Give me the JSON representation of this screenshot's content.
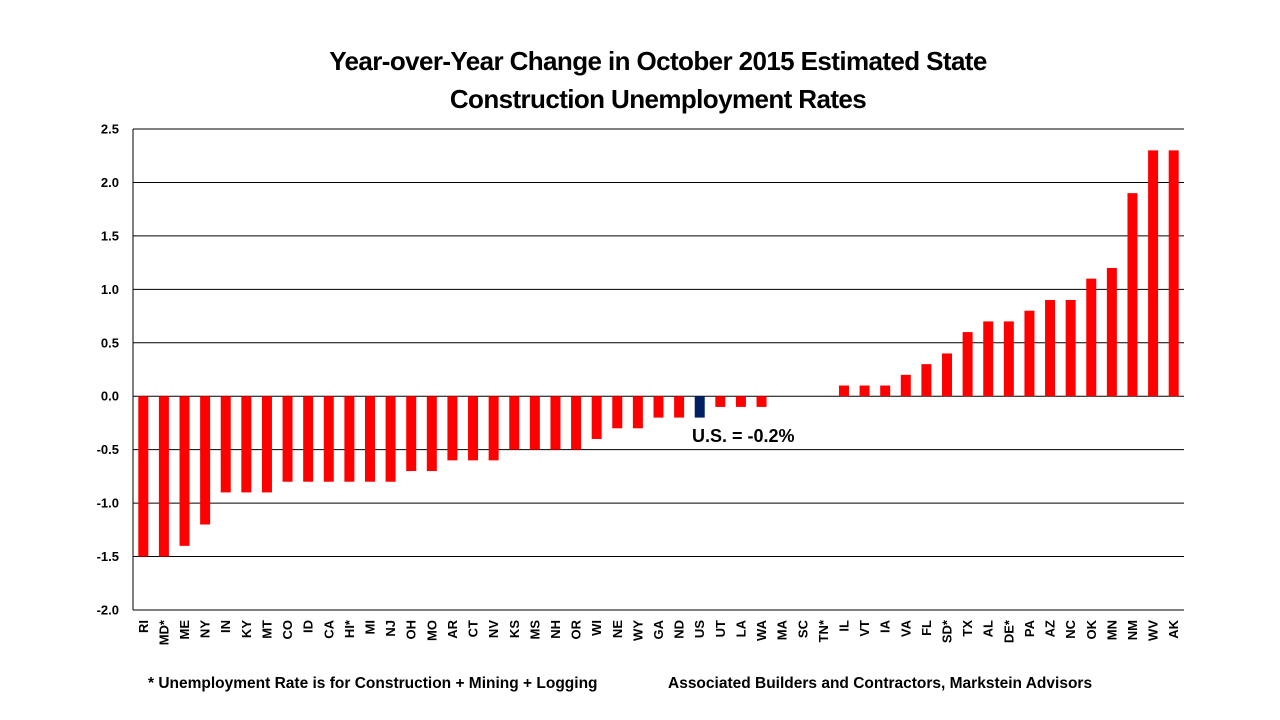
{
  "title_lines": [
    "Year-over-Year Change in October 2015 Estimated State",
    "Construction Unemployment Rates"
  ],
  "footnote": "* Unemployment Rate is for Construction + Mining + Logging",
  "source": "Associated Builders and Contractors, Markstein Advisors",
  "annotation": "U.S. = -0.2%",
  "colors": {
    "bar": "#ff0000",
    "highlight": "#002060",
    "grid": "#000000"
  },
  "chart_data": {
    "type": "bar",
    "title": "Year-over-Year Change in October 2015 Estimated State Construction Unemployment Rates",
    "xlabel": "",
    "ylabel": "",
    "ylim": [
      -2.0,
      2.5
    ],
    "yticks": [
      "2.5",
      "2.0",
      "1.5",
      "1.0",
      "0.5",
      "0.0",
      "-0.5",
      "-1.0",
      "-1.5",
      "-2.0"
    ],
    "grid": true,
    "highlight_category": "US",
    "categories": [
      "RI",
      "MD*",
      "ME",
      "NY",
      "IN",
      "KY",
      "MT",
      "CO",
      "ID",
      "CA",
      "HI*",
      "MI",
      "NJ",
      "OH",
      "MO",
      "AR",
      "CT",
      "NV",
      "KS",
      "MS",
      "NH",
      "OR",
      "WI",
      "NE",
      "WY",
      "GA",
      "ND",
      "US",
      "UT",
      "LA",
      "WA",
      "MA",
      "SC",
      "TN*",
      "IL",
      "VT",
      "IA",
      "VA",
      "FL",
      "SD*",
      "TX",
      "AL",
      "DE*",
      "PA",
      "AZ",
      "NC",
      "OK",
      "MN",
      "NM",
      "WV",
      "AK"
    ],
    "values": [
      -1.5,
      -1.5,
      -1.4,
      -1.2,
      -0.9,
      -0.9,
      -0.9,
      -0.8,
      -0.8,
      -0.8,
      -0.8,
      -0.8,
      -0.8,
      -0.7,
      -0.7,
      -0.6,
      -0.6,
      -0.6,
      -0.5,
      -0.5,
      -0.5,
      -0.5,
      -0.4,
      -0.3,
      -0.3,
      -0.2,
      -0.2,
      -0.2,
      -0.1,
      -0.1,
      -0.1,
      0.0,
      0.0,
      0.0,
      0.1,
      0.1,
      0.1,
      0.2,
      0.3,
      0.4,
      0.6,
      0.7,
      0.7,
      0.8,
      0.9,
      0.9,
      1.1,
      1.2,
      1.9,
      2.3,
      2.3
    ]
  }
}
